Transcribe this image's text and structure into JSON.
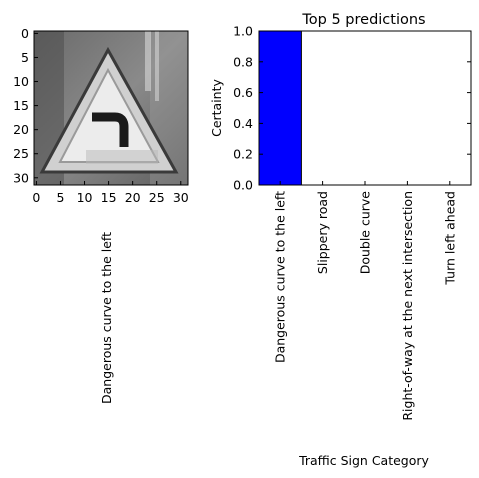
{
  "left_panel": {
    "image_description": "grayscale traffic sign",
    "x_ticks": [
      "0",
      "5",
      "10",
      "15",
      "20",
      "25",
      "30"
    ],
    "y_ticks": [
      "0",
      "5",
      "10",
      "15",
      "20",
      "25",
      "30"
    ],
    "xlabel": "Dangerous curve to the left"
  },
  "chart_data": {
    "type": "bar",
    "title": "Top 5 predictions",
    "xlabel": "Traffic Sign Category",
    "ylabel": "Certainty",
    "categories": [
      "Dangerous curve to the left",
      "Slippery road",
      "Double curve",
      "Right-of-way at the next intersection",
      "Turn left ahead"
    ],
    "values": [
      1.0,
      0.0,
      0.0,
      0.0,
      0.0
    ],
    "ylim": [
      0.0,
      1.0
    ],
    "y_ticks": [
      "0.0",
      "0.2",
      "0.4",
      "0.6",
      "0.8",
      "1.0"
    ],
    "bar_color": "#0000ff"
  }
}
